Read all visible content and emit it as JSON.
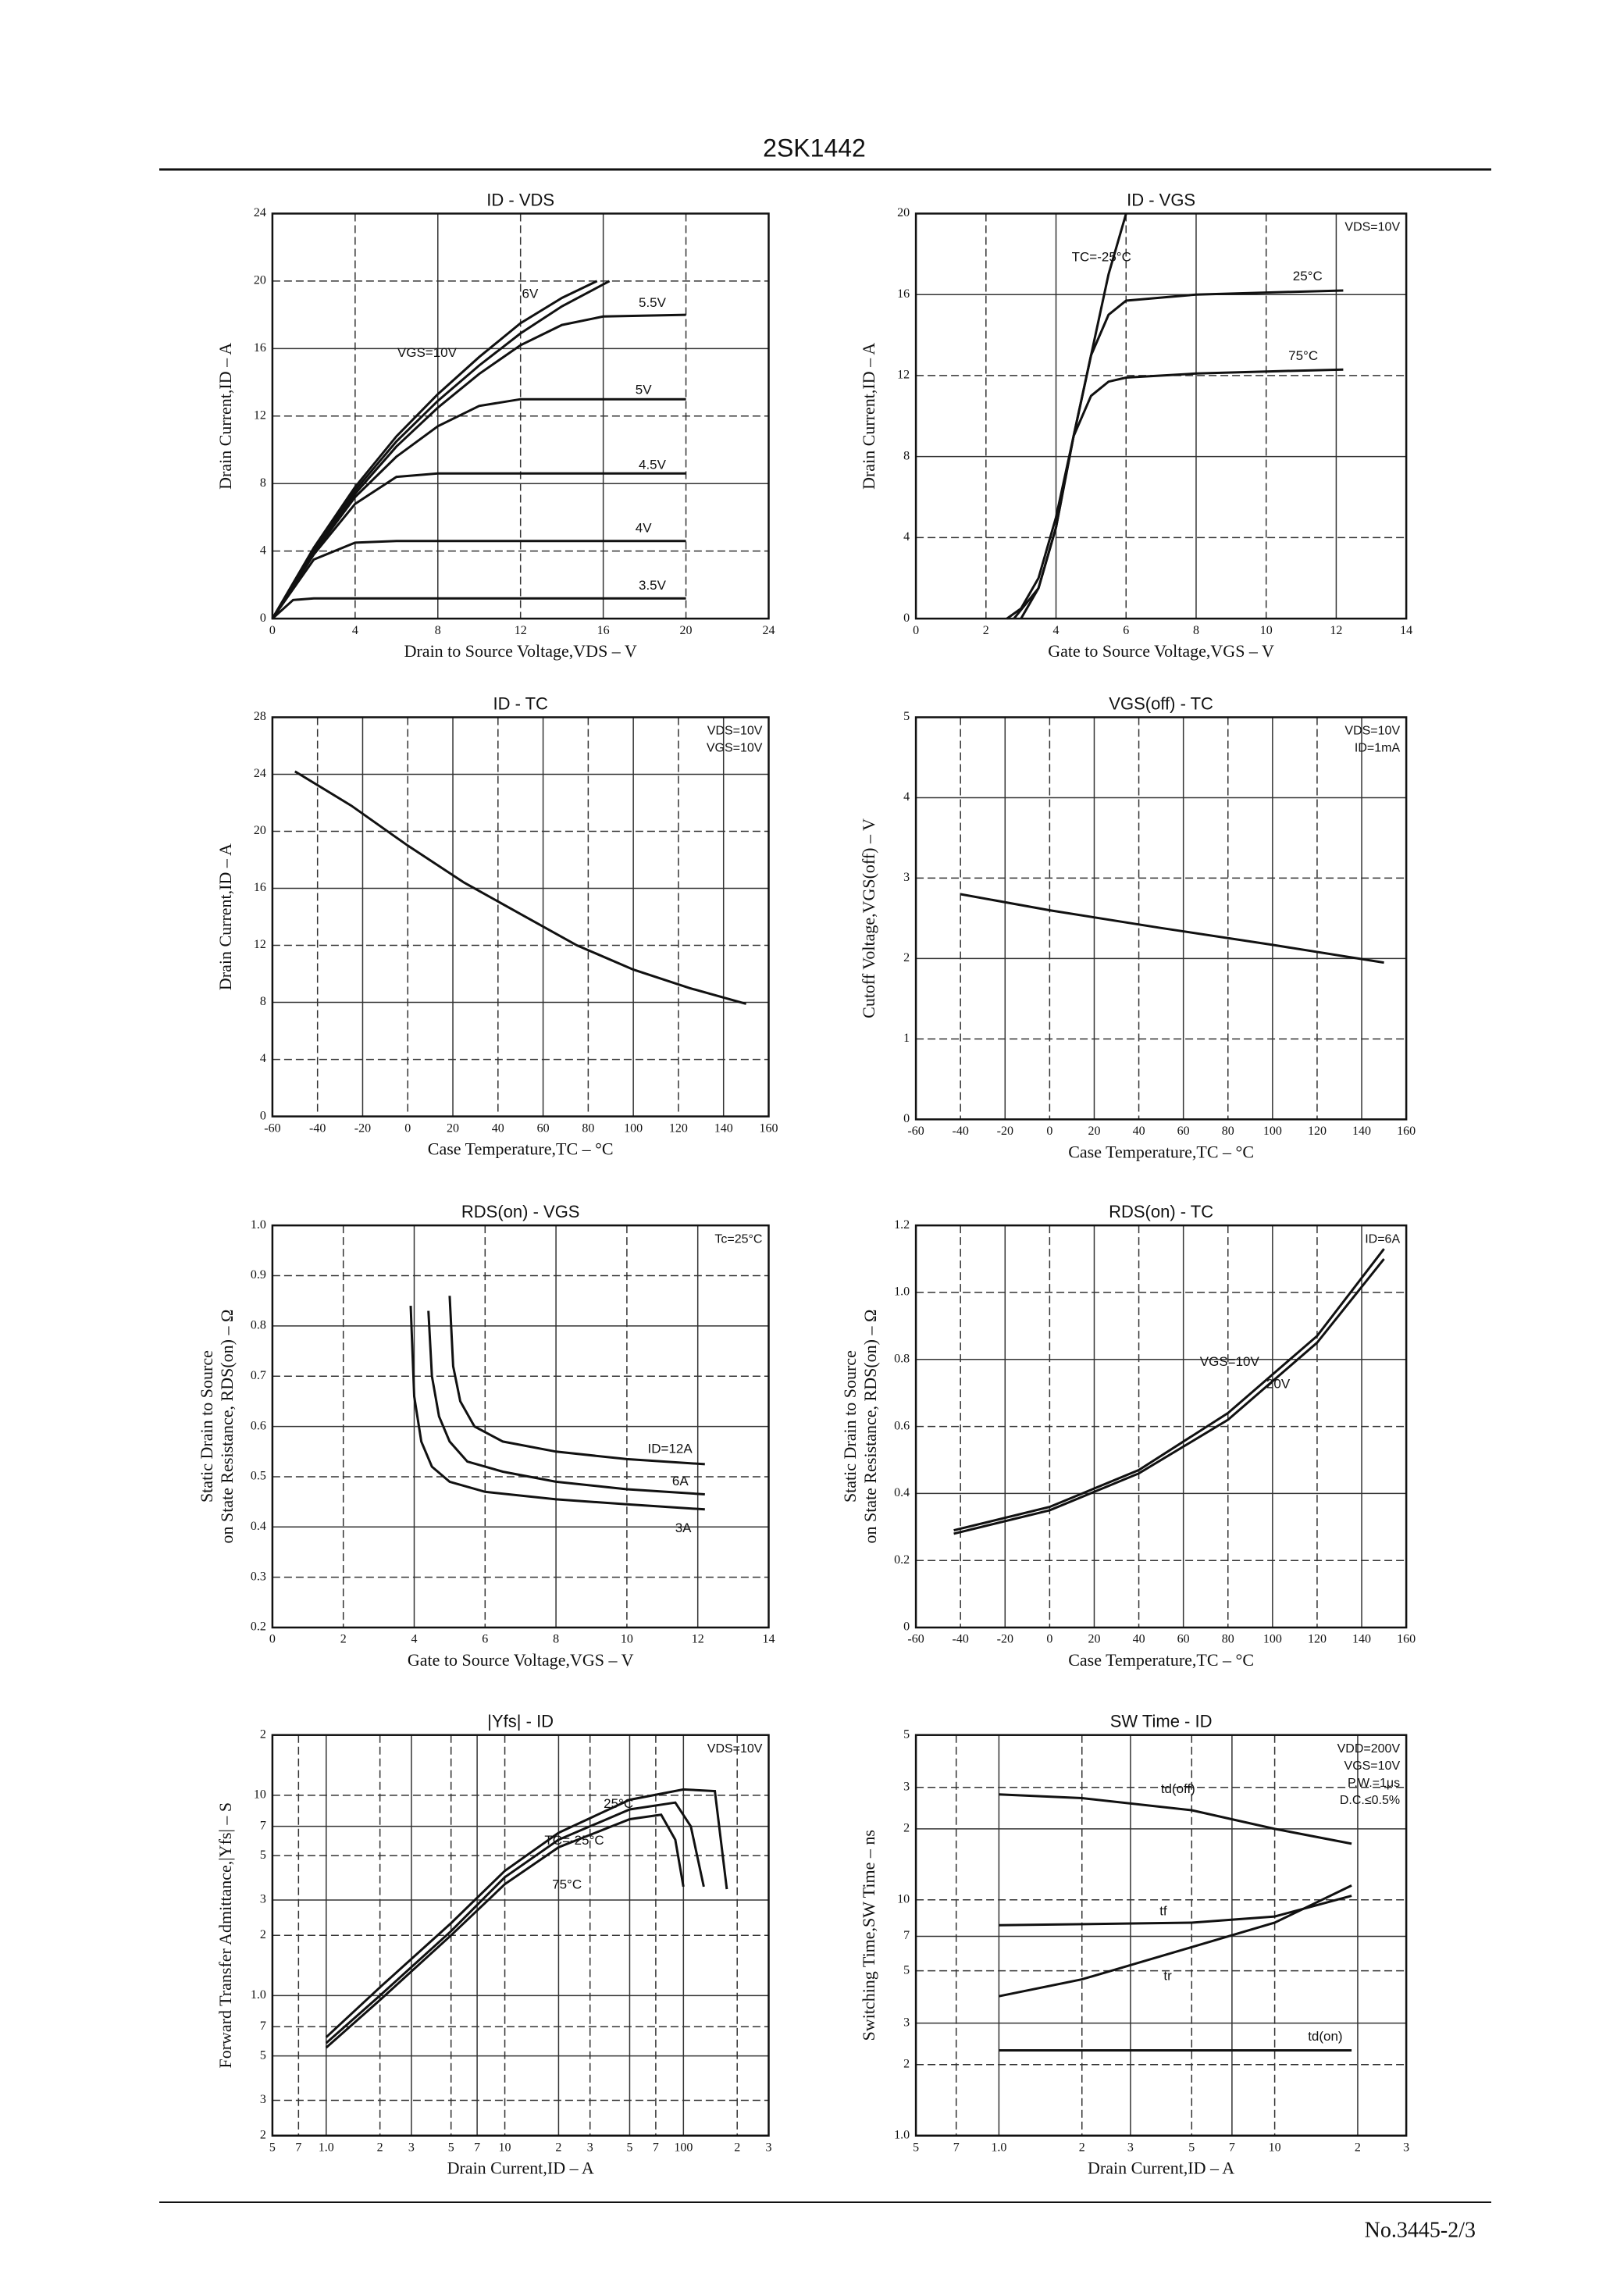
{
  "header": {
    "title": "2SK1442"
  },
  "footer": {
    "text": "No.3445-2/3"
  },
  "chart_data": [
    {
      "type": "line",
      "title": "ID - VDS",
      "xlabel": "Drain to Source Voltage,VDS – V",
      "ylabel": "Drain Current,ID – A",
      "xlim": [
        0,
        24
      ],
      "ylim": [
        0,
        24
      ],
      "xticks": [
        0,
        4,
        8,
        12,
        16,
        20,
        24
      ],
      "yticks": [
        0,
        4,
        8,
        12,
        16,
        20,
        24
      ],
      "grid": true,
      "series": [
        {
          "name": "VGS=10V",
          "x": [
            0,
            2,
            4,
            6,
            8,
            10,
            12,
            14,
            15.7
          ],
          "values": [
            0,
            4.2,
            7.8,
            10.8,
            13.3,
            15.5,
            17.5,
            19,
            20
          ]
        },
        {
          "name": "6V",
          "x": [
            0,
            2,
            4,
            6,
            8,
            10,
            12,
            14,
            16.3
          ],
          "values": [
            0,
            4.1,
            7.6,
            10.5,
            12.9,
            15,
            16.9,
            18.5,
            20
          ]
        },
        {
          "name": "5.5V",
          "x": [
            0,
            2,
            4,
            6,
            8,
            10,
            12,
            14,
            16,
            20
          ],
          "values": [
            0,
            4,
            7.4,
            10.2,
            12.5,
            14.5,
            16.2,
            17.4,
            17.9,
            18
          ]
        },
        {
          "name": "5V",
          "x": [
            0,
            2,
            4,
            6,
            8,
            10,
            12,
            16,
            20
          ],
          "values": [
            0,
            3.9,
            7.2,
            9.6,
            11.4,
            12.6,
            13,
            13,
            13
          ]
        },
        {
          "name": "4.5V",
          "x": [
            0,
            2,
            4,
            6,
            8,
            12,
            20
          ],
          "values": [
            0,
            3.8,
            6.8,
            8.4,
            8.6,
            8.6,
            8.6
          ]
        },
        {
          "name": "4V",
          "x": [
            0,
            2,
            4,
            6,
            20
          ],
          "values": [
            0,
            3.5,
            4.5,
            4.6,
            4.6
          ]
        },
        {
          "name": "3.5V",
          "x": [
            0,
            1,
            2,
            20
          ],
          "values": [
            0,
            1.1,
            1.2,
            1.2
          ]
        }
      ]
    },
    {
      "type": "line",
      "title": "ID - VGS",
      "xlabel": "Gate to Source Voltage,VGS – V",
      "ylabel": "Drain Current,ID – A",
      "xlim": [
        0,
        14
      ],
      "ylim": [
        0,
        20
      ],
      "xticks": [
        0,
        2,
        4,
        6,
        8,
        10,
        12,
        14
      ],
      "yticks": [
        0,
        4,
        8,
        12,
        16,
        20
      ],
      "grid": true,
      "annotations": [
        "VDS=10V"
      ],
      "series": [
        {
          "name": "TC=-25°C",
          "x": [
            2.6,
            3,
            3.5,
            4,
            4.5,
            5,
            5.5,
            6
          ],
          "values": [
            0,
            0.5,
            2,
            5,
            9,
            13,
            17,
            20
          ]
        },
        {
          "name": "25°C",
          "x": [
            2.8,
            3.5,
            4,
            4.5,
            5,
            5.5,
            6,
            8,
            10,
            12.2
          ],
          "values": [
            0,
            1.5,
            4.5,
            9,
            13,
            15,
            15.7,
            16,
            16.1,
            16.2
          ]
        },
        {
          "name": "75°C",
          "x": [
            3,
            3.5,
            4,
            4.5,
            5,
            5.5,
            6,
            8,
            10,
            12.2
          ],
          "values": [
            0,
            1.5,
            4.5,
            9,
            11,
            11.7,
            11.9,
            12.1,
            12.2,
            12.3
          ]
        }
      ]
    },
    {
      "type": "line",
      "title": "ID - TC",
      "xlabel": "Case Temperature,TC – °C",
      "ylabel": "Drain Current,ID – A",
      "xlim": [
        -60,
        160
      ],
      "ylim": [
        0,
        28
      ],
      "xticks": [
        -60,
        -40,
        -20,
        0,
        20,
        40,
        60,
        80,
        100,
        120,
        140,
        160
      ],
      "yticks": [
        0,
        4,
        8,
        12,
        16,
        20,
        24,
        28
      ],
      "grid": true,
      "annotations": [
        "VDS=10V",
        "VGS=10V"
      ],
      "series": [
        {
          "x": [
            -50,
            -25,
            0,
            25,
            50,
            75,
            100,
            125,
            150
          ],
          "values": [
            24.2,
            21.8,
            19,
            16.4,
            14.2,
            12,
            10.3,
            9,
            7.9
          ]
        }
      ]
    },
    {
      "type": "line",
      "title": "VGS(off) - TC",
      "xlabel": "Case Temperature,TC – °C",
      "ylabel": "Cutoff Voltage,VGS(off) – V",
      "xlim": [
        -60,
        160
      ],
      "ylim": [
        0,
        5
      ],
      "xticks": [
        -60,
        -40,
        -20,
        0,
        20,
        40,
        60,
        80,
        100,
        120,
        140,
        160
      ],
      "yticks": [
        0,
        1,
        2,
        3,
        4,
        5
      ],
      "grid": true,
      "annotations": [
        "VDS=10V",
        "ID=1mA"
      ],
      "series": [
        {
          "x": [
            -40,
            0,
            50,
            100,
            150
          ],
          "values": [
            2.8,
            2.6,
            2.38,
            2.17,
            1.95
          ]
        }
      ]
    },
    {
      "type": "line",
      "title": "RDS(on) - VGS",
      "xlabel": "Gate to Source Voltage,VGS – V",
      "ylabel": [
        "Static Drain to Source",
        "on State Resistance, RDS(on) – Ω"
      ],
      "xlim": [
        0,
        14
      ],
      "ylim": [
        0.2,
        1.0
      ],
      "xticks": [
        0,
        2,
        4,
        6,
        8,
        10,
        12,
        14
      ],
      "yticks": [
        0.2,
        0.3,
        0.4,
        0.5,
        0.6,
        0.7,
        0.8,
        0.9,
        {
          "value": 1.0,
          "label": "1.0"
        }
      ],
      "grid": true,
      "annotations": [
        "Tc=25°C"
      ],
      "series": [
        {
          "name": "ID=12A",
          "x": [
            5,
            5.1,
            5.3,
            5.7,
            6.5,
            8,
            10,
            12.2
          ],
          "values": [
            0.86,
            0.72,
            0.65,
            0.6,
            0.57,
            0.55,
            0.535,
            0.525
          ]
        },
        {
          "name": "6A",
          "x": [
            4.4,
            4.5,
            4.7,
            5,
            5.5,
            6.5,
            8,
            10,
            12.2
          ],
          "values": [
            0.83,
            0.7,
            0.62,
            0.57,
            0.53,
            0.51,
            0.49,
            0.475,
            0.465
          ]
        },
        {
          "name": "3A",
          "x": [
            3.9,
            4,
            4.2,
            4.5,
            5,
            6,
            8,
            10,
            12.2
          ],
          "values": [
            0.84,
            0.66,
            0.57,
            0.52,
            0.49,
            0.47,
            0.455,
            0.445,
            0.435
          ]
        }
      ]
    },
    {
      "type": "line",
      "title": "RDS(on) - TC",
      "xlabel": "Case Temperature,TC – °C",
      "ylabel": [
        "Static Drain to Source",
        "on State Resistance, RDS(on) – Ω"
      ],
      "xlim": [
        -60,
        160
      ],
      "ylim": [
        0,
        1.2
      ],
      "xticks": [
        -60,
        -40,
        -20,
        0,
        20,
        40,
        60,
        80,
        100,
        120,
        140,
        160
      ],
      "yticks": [
        0,
        0.2,
        0.4,
        0.6,
        0.8,
        {
          "value": 1.0,
          "label": "1.0"
        },
        1.2
      ],
      "grid": true,
      "annotations": [
        "ID=6A"
      ],
      "series": [
        {
          "name": "VGS=10V",
          "x": [
            -43,
            0,
            40,
            80,
            120,
            150
          ],
          "values": [
            0.29,
            0.36,
            0.47,
            0.64,
            0.87,
            1.13
          ]
        },
        {
          "name": "20V",
          "x": [
            -43,
            0,
            40,
            80,
            120,
            150
          ],
          "values": [
            0.28,
            0.35,
            0.46,
            0.62,
            0.85,
            1.1
          ]
        }
      ]
    },
    {
      "type": "line",
      "title": "|Yfs| - ID",
      "xlabel": "Drain Current,ID – A",
      "ylabel": "Forward Transfer Admittance,|Yfs| – S",
      "xlog": true,
      "ylog": true,
      "xlim": [
        0.5,
        300
      ],
      "ylim": [
        0.2,
        20
      ],
      "xticks": [
        {
          "value": 0.5,
          "label": "5"
        },
        {
          "value": 0.7,
          "label": "7"
        },
        {
          "value": 1,
          "label": "1.0"
        },
        2,
        3,
        5,
        7,
        10,
        {
          "value": 20,
          "label": "2"
        },
        {
          "value": 30,
          "label": "3"
        },
        {
          "value": 50,
          "label": "5"
        },
        {
          "value": 70,
          "label": "7"
        },
        100,
        {
          "value": 200,
          "label": "2"
        },
        {
          "value": 300,
          "label": "3"
        }
      ],
      "yticks": [
        {
          "value": 0.2,
          "label": "2"
        },
        {
          "value": 0.3,
          "label": "3"
        },
        {
          "value": 0.5,
          "label": "5"
        },
        {
          "value": 0.7,
          "label": "7"
        },
        {
          "value": 1,
          "label": "1.0"
        },
        2,
        3,
        5,
        7,
        10,
        {
          "value": 20,
          "label": "2"
        }
      ],
      "grid": true,
      "annotations": [
        "VDS=10V"
      ],
      "series": [
        {
          "name": "TC=-25°C",
          "x": [
            1,
            2,
            5,
            10,
            20,
            50,
            100,
            150,
            175
          ],
          "values": [
            0.62,
            1.1,
            2.3,
            4.2,
            6.5,
            9.5,
            10.7,
            10.5,
            3.4
          ]
        },
        {
          "name": "25°C",
          "x": [
            1,
            2,
            5,
            10,
            20,
            50,
            90,
            110,
            130
          ],
          "values": [
            0.58,
            1.0,
            2.1,
            3.9,
            6,
            8.5,
            9.2,
            7,
            3.5
          ]
        },
        {
          "name": "75°C",
          "x": [
            1,
            2,
            5,
            10,
            20,
            50,
            75,
            90,
            100
          ],
          "values": [
            0.55,
            0.95,
            2,
            3.6,
            5.5,
            7.6,
            8,
            6,
            3.5
          ]
        }
      ]
    },
    {
      "type": "line",
      "title": "SW Time - ID",
      "xlabel": "Drain Current,ID – A",
      "ylabel": "Switching Time,SW Time – ns",
      "xlog": true,
      "ylog": true,
      "xlim": [
        0.5,
        30
      ],
      "ylim": [
        1,
        50
      ],
      "xticks": [
        {
          "value": 0.5,
          "label": "5"
        },
        {
          "value": 0.7,
          "label": "7"
        },
        {
          "value": 1,
          "label": "1.0"
        },
        2,
        3,
        5,
        7,
        10,
        {
          "value": 20,
          "label": "2"
        },
        {
          "value": 30,
          "label": "3"
        }
      ],
      "yticks": [
        {
          "value": 1,
          "label": "1.0"
        },
        2,
        3,
        5,
        7,
        10,
        {
          "value": 20,
          "label": "2"
        },
        {
          "value": 30,
          "label": "3"
        },
        {
          "value": 50,
          "label": "5"
        }
      ],
      "grid": true,
      "annotations": [
        "VDD=200V",
        "VGS=10V",
        "P.W.=1μs",
        "D.C.≤0.5%"
      ],
      "series": [
        {
          "name": "td(off)",
          "x": [
            1,
            2,
            5,
            10,
            19
          ],
          "values": [
            28,
            27,
            24,
            20,
            17.3
          ]
        },
        {
          "name": "tf",
          "x": [
            1,
            5,
            10,
            19
          ],
          "values": [
            7.8,
            8,
            8.5,
            10.4
          ]
        },
        {
          "name": "tr",
          "x": [
            1,
            2,
            5,
            10,
            19
          ],
          "values": [
            3.9,
            4.6,
            6.3,
            8,
            11.5
          ]
        },
        {
          "name": "td(on)",
          "x": [
            1,
            19
          ],
          "values": [
            2.3,
            2.3
          ]
        }
      ]
    }
  ]
}
